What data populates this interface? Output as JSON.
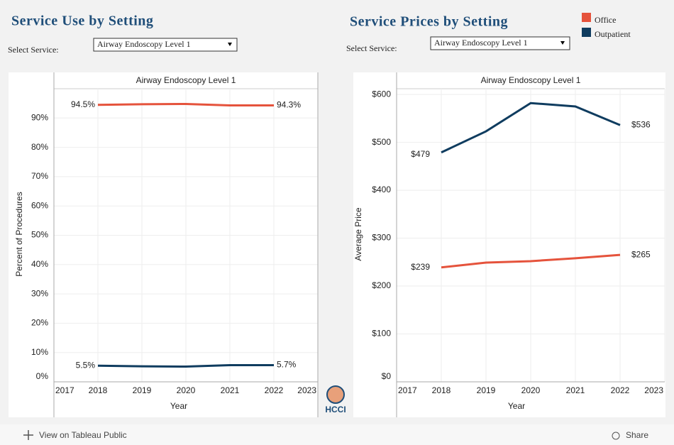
{
  "header": {
    "left_title": "Service Use by Setting",
    "right_title": "Service Prices by Setting"
  },
  "filters": [
    {
      "label": "Select Service:",
      "value": "Airway Endoscopy Level 1"
    },
    {
      "label": "Select Service:",
      "value": "Airway Endoscopy Level 1"
    }
  ],
  "logo": "HCCI",
  "toolbar": {
    "view": "View on Tableau Public",
    "share": "Share"
  },
  "chart_data": [
    {
      "type": "line",
      "title": "Airway Endoscopy Level 1",
      "x_label": "Year",
      "y_label": "Percent of Procedures",
      "x": [
        2018,
        2019,
        2020,
        2021,
        2022
      ],
      "xlim": [
        2017,
        2023
      ],
      "xticks": [
        2017,
        2018,
        2019,
        2020,
        2021,
        2022,
        2023
      ],
      "ylim": [
        0,
        100
      ],
      "yticks": [
        {
          "value": 0,
          "label": "0%"
        },
        {
          "value": 10,
          "label": "10%"
        },
        {
          "value": 20,
          "label": "20%"
        },
        {
          "value": 30,
          "label": "30%"
        },
        {
          "value": 40,
          "label": "40%"
        },
        {
          "value": 50,
          "label": "50%"
        },
        {
          "value": 60,
          "label": "60%"
        },
        {
          "value": 70,
          "label": "70%"
        },
        {
          "value": 80,
          "label": "80%"
        },
        {
          "value": 90,
          "label": "90%"
        }
      ],
      "grid": true,
      "series": [
        {
          "name": "Office",
          "color": "#e5533c",
          "values": [
            94.5,
            94.7,
            94.8,
            94.3,
            94.3
          ],
          "value_labels": [
            "94.5%",
            null,
            null,
            null,
            "94.3%"
          ]
        },
        {
          "name": "Outpatient",
          "color": "#0f3c5f",
          "values": [
            5.5,
            5.3,
            5.2,
            5.7,
            5.7
          ],
          "value_labels": [
            "5.5%",
            null,
            null,
            null,
            "5.7%"
          ]
        }
      ]
    },
    {
      "type": "line",
      "title": "Airway Endoscopy Level 1",
      "x_label": "Year",
      "y_label": "Average Price",
      "x": [
        2018,
        2019,
        2020,
        2021,
        2022
      ],
      "xlim": [
        2017,
        2023
      ],
      "xticks": [
        2017,
        2018,
        2019,
        2020,
        2021,
        2022,
        2023
      ],
      "ylim": [
        0,
        612
      ],
      "yticks": [
        {
          "value": 0,
          "label": "$0"
        },
        {
          "value": 100,
          "label": "$100"
        },
        {
          "value": 200,
          "label": "$200"
        },
        {
          "value": 300,
          "label": "$300"
        },
        {
          "value": 400,
          "label": "$400"
        },
        {
          "value": 500,
          "label": "$500"
        },
        {
          "value": 600,
          "label": "$600"
        }
      ],
      "grid": true,
      "legend": "top-right",
      "series": [
        {
          "name": "Office",
          "color": "#e5533c",
          "values": [
            239,
            249,
            252,
            258,
            265
          ],
          "value_labels": [
            "$239",
            null,
            null,
            null,
            "$265"
          ]
        },
        {
          "name": "Outpatient",
          "color": "#0f3c5f",
          "values": [
            479,
            523,
            582,
            575,
            536
          ],
          "value_labels": [
            "$479",
            null,
            null,
            null,
            "$536"
          ]
        }
      ]
    }
  ]
}
